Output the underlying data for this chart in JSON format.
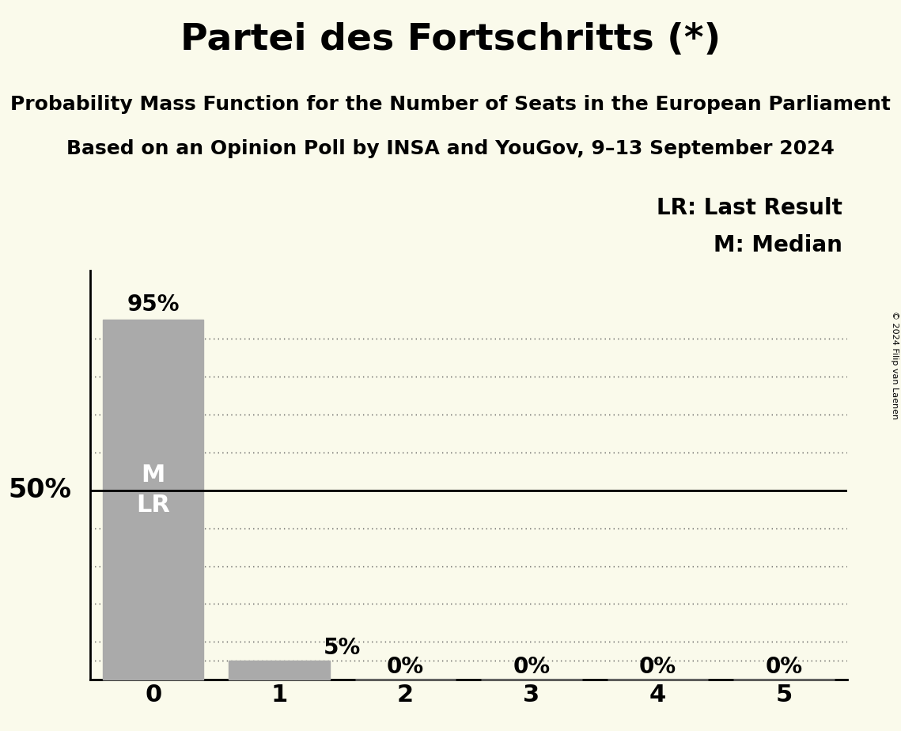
{
  "title": "Partei des Fortschritts (*)",
  "subtitle1": "Probability Mass Function for the Number of Seats in the European Parliament",
  "subtitle2": "Based on an Opinion Poll by INSA and YouGov, 9–13 September 2024",
  "copyright": "© 2024 Filip van Laenen",
  "categories": [
    0,
    1,
    2,
    3,
    4,
    5
  ],
  "values": [
    0.95,
    0.05,
    0.0,
    0.0,
    0.0,
    0.0
  ],
  "bar_color": "#aaaaaa",
  "bar_labels": [
    "95%",
    "5%",
    "0%",
    "0%",
    "0%",
    "0%"
  ],
  "median": 0,
  "last_result": 0,
  "background_color": "#fafaeb",
  "fifty_pct_line_y": 0.5,
  "ylim": [
    0,
    1.08
  ],
  "xlim": [
    -0.5,
    5.5
  ],
  "ylabel_50": "50%",
  "legend_lr": "LR: Last Result",
  "legend_m": "M: Median",
  "bar_label_color_inside": "#ffffff",
  "bar_label_color_outside": "#000000",
  "bar_label_fontsize": 20,
  "median_lr_label_fontsize": 22,
  "bar_width": 0.8,
  "grid_dotted_color": "#555555",
  "fifty_line_color": "#000000",
  "axis_tick_fontsize": 22,
  "title_fontsize": 34,
  "subtitle_fontsize": 18,
  "fifty_label_fontsize": 24,
  "legend_fontsize": 20,
  "dotted_grid_levels": [
    0.9,
    0.8,
    0.7,
    0.6,
    0.4,
    0.3,
    0.2,
    0.1,
    0.05
  ],
  "copyright_fontsize": 8
}
